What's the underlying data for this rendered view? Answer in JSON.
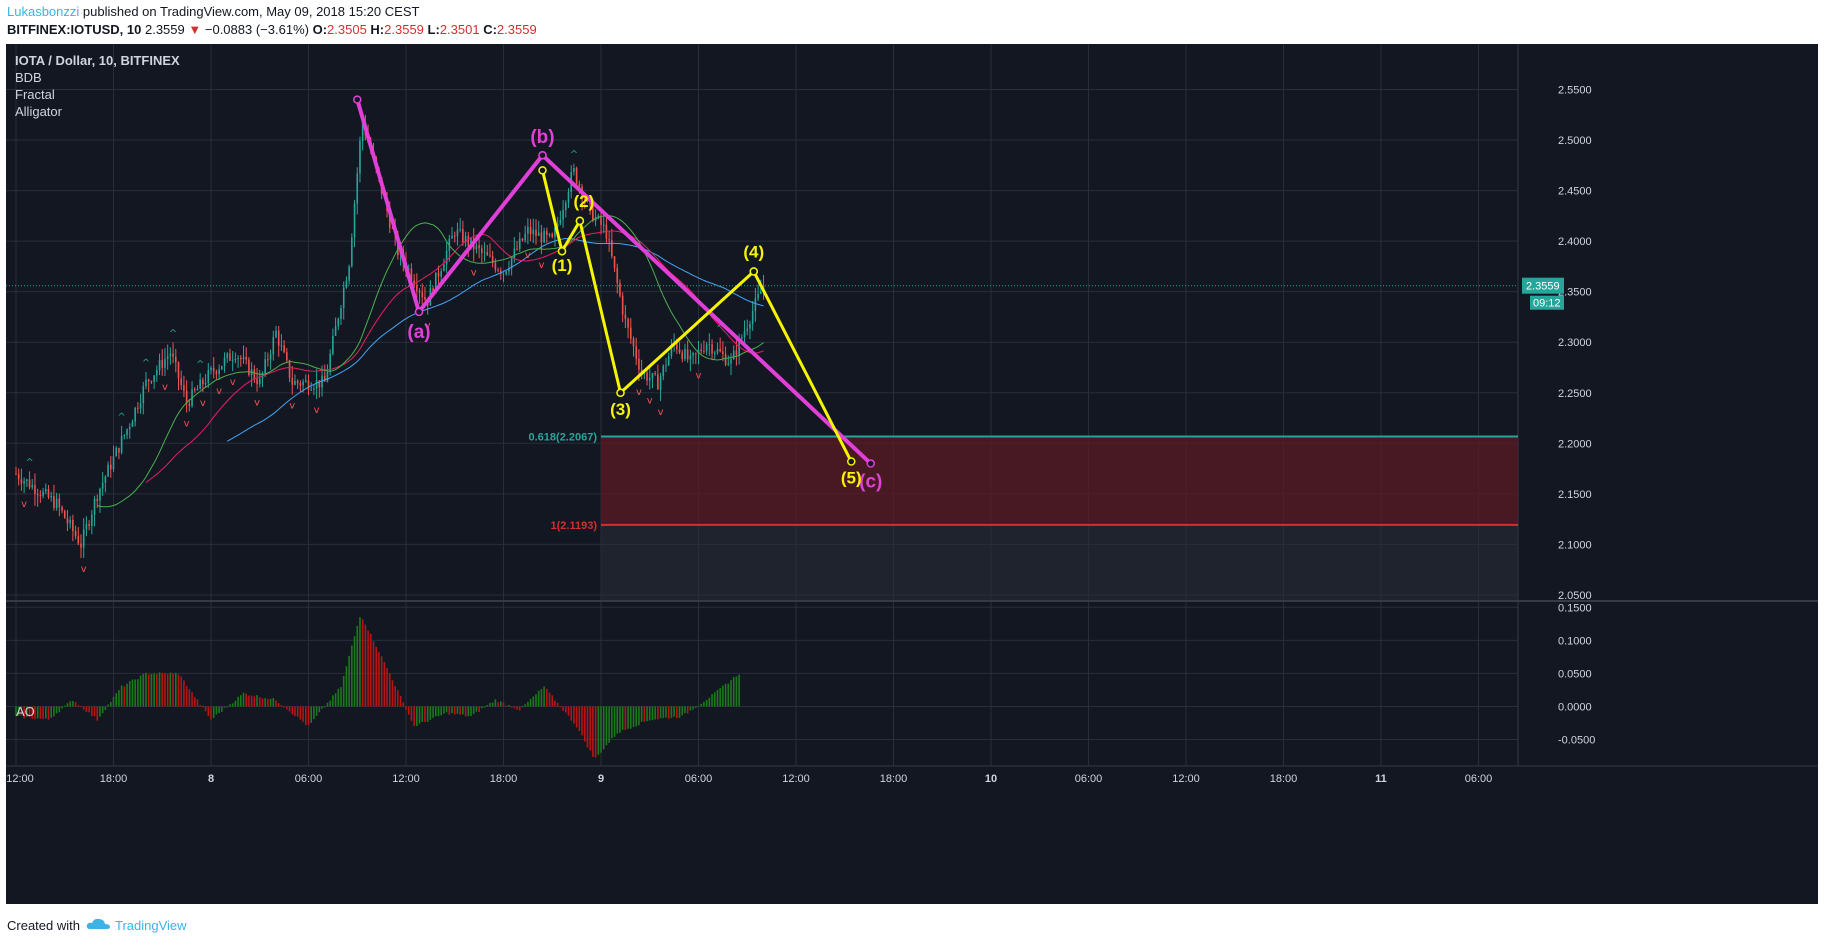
{
  "header": {
    "author": "Lukasbonzzi",
    "published": "published on TradingView.com, May 09, 2018 15:20 CEST",
    "symbol": "BITFINEX:IOTUSD, 10",
    "last": "2.3559",
    "change_arrow": "▼",
    "change": "−0.0883 (−3.61%)",
    "o_label": "O:",
    "o": "2.3505",
    "h_label": "H:",
    "h": "2.3559",
    "l_label": "L:",
    "l": "2.3501",
    "c_label": "C:",
    "c": "2.3559"
  },
  "legend": {
    "title": "IOTA / Dollar, 10, BITFINEX",
    "indicators": [
      "BDB",
      "Fractal",
      "Alligator"
    ],
    "ao_label": "AO"
  },
  "footer": {
    "created_with": "Created with",
    "brand": "TradingView",
    "logo_icon": "tradingview-cloud-icon"
  },
  "colors": {
    "background": "#131722",
    "up_candle": "#26a69a",
    "down_candle": "#ef5350",
    "magenta_wave": "#e040d8",
    "yellow_wave": "#f5f500",
    "fib_618": "#26a69a",
    "fib_1": "#d32f2f",
    "zone": "#5b1a24",
    "price_badge": "#26a69a",
    "ao_up": "#1b7a1b",
    "ao_down": "#b81414"
  },
  "chart_data": [
    {
      "type": "candlestick",
      "title": "IOTA / Dollar, 10, BITFINEX",
      "x_ticks": [
        "12:00",
        "18:00",
        "8",
        "06:00",
        "12:00",
        "18:00",
        "9",
        "06:00",
        "12:00",
        "18:00",
        "10",
        "06:00",
        "12:00",
        "18:00",
        "11",
        "06:00"
      ],
      "y_ticks": [
        "2.5500",
        "2.5000",
        "2.4500",
        "2.4000",
        "2.3500",
        "2.3000",
        "2.2500",
        "2.2000",
        "2.1500",
        "2.1000",
        "2.0500"
      ],
      "ylim": [
        2.045,
        2.595
      ],
      "last_price": "2.3559",
      "countdown": "09:12",
      "price_path": [
        [
          0,
          2.17
        ],
        [
          2.5,
          2.14
        ],
        [
          4,
          2.1
        ],
        [
          5,
          2.15
        ],
        [
          7,
          2.22
        ],
        [
          8,
          2.26
        ],
        [
          9.5,
          2.29
        ],
        [
          10.5,
          2.24
        ],
        [
          12,
          2.27
        ],
        [
          13.5,
          2.29
        ],
        [
          15,
          2.26
        ],
        [
          16,
          2.31
        ],
        [
          17,
          2.26
        ],
        [
          19,
          2.26
        ],
        [
          20.5,
          2.38
        ],
        [
          21.3,
          2.52
        ],
        [
          22.5,
          2.45
        ],
        [
          23.5,
          2.39
        ],
        [
          25.3,
          2.34
        ],
        [
          27,
          2.41
        ],
        [
          28.5,
          2.39
        ],
        [
          30,
          2.37
        ],
        [
          31.5,
          2.41
        ],
        [
          33,
          2.4
        ],
        [
          34.3,
          2.47
        ],
        [
          35.3,
          2.43
        ],
        [
          36.3,
          2.41
        ],
        [
          37.5,
          2.32
        ],
        [
          38.5,
          2.27
        ],
        [
          39.5,
          2.26
        ],
        [
          40.5,
          2.3
        ],
        [
          41.5,
          2.28
        ],
        [
          42.5,
          2.3
        ],
        [
          44,
          2.28
        ],
        [
          45.3,
          2.33
        ],
        [
          46,
          2.356
        ]
      ],
      "waves": [
        {
          "name": "(a)",
          "points": [
            [
              21.0,
              2.54
            ],
            [
              24.8,
              2.33
            ]
          ]
        },
        {
          "name": "(b)",
          "points": [
            [
              24.8,
              2.33
            ],
            [
              32.4,
              2.485
            ]
          ]
        },
        {
          "name": "(c)",
          "points": [
            [
              32.4,
              2.485
            ],
            [
              52.6,
              2.18
            ]
          ]
        },
        {
          "name": "(1)",
          "points": [
            [
              32.4,
              2.47
            ],
            [
              33.6,
              2.39
            ]
          ]
        },
        {
          "name": "(2)",
          "points": [
            [
              33.6,
              2.39
            ],
            [
              34.7,
              2.42
            ]
          ]
        },
        {
          "name": "(3)",
          "points": [
            [
              34.7,
              2.42
            ],
            [
              37.2,
              2.25
            ]
          ]
        },
        {
          "name": "(4)",
          "points": [
            [
              37.2,
              2.25
            ],
            [
              45.4,
              2.37
            ]
          ]
        },
        {
          "name": "(5)",
          "points": [
            [
              45.4,
              2.37
            ],
            [
              51.4,
              2.182
            ]
          ]
        }
      ],
      "wave_labels": [
        {
          "text": "(a)",
          "x": 24.8,
          "y": 2.33,
          "color": "magenta"
        },
        {
          "text": "(b)",
          "x": 32.4,
          "y": 2.485,
          "color": "magenta"
        },
        {
          "text": "(c)",
          "x": 52.6,
          "y": 2.18,
          "color": "magenta"
        },
        {
          "text": "(1)",
          "x": 33.6,
          "y": 2.39,
          "color": "yellow"
        },
        {
          "text": "(2)",
          "x": 34.7,
          "y": 2.42,
          "color": "yellow"
        },
        {
          "text": "(3)",
          "x": 37.2,
          "y": 2.25,
          "color": "yellow"
        },
        {
          "text": "(4)",
          "x": 45.4,
          "y": 2.37,
          "color": "yellow"
        },
        {
          "text": "(5)",
          "x": 51.4,
          "y": 2.182,
          "color": "yellow"
        }
      ],
      "fib_levels": [
        {
          "label": "0.618(2.2067)",
          "value": 2.2067,
          "color": "#26a69a"
        },
        {
          "label": "1(2.1193)",
          "value": 2.1193,
          "color": "#d32f2f"
        }
      ],
      "fib_start_x": 36.0
    },
    {
      "type": "bar",
      "title": "AO",
      "y_ticks": [
        "0.1500",
        "0.1000",
        "0.0500",
        "0.0000",
        "-0.0500"
      ],
      "ylim": [
        -0.09,
        0.155
      ],
      "ao_path": [
        [
          0,
          -0.015
        ],
        [
          2,
          -0.02
        ],
        [
          3.5,
          0.01
        ],
        [
          5,
          -0.02
        ],
        [
          6.5,
          0.03
        ],
        [
          8,
          0.05
        ],
        [
          10,
          0.05
        ],
        [
          12,
          -0.02
        ],
        [
          14,
          0.02
        ],
        [
          16,
          0.01
        ],
        [
          18,
          -0.03
        ],
        [
          20,
          0.03
        ],
        [
          21.2,
          0.14
        ],
        [
          23,
          0.05
        ],
        [
          24.5,
          -0.03
        ],
        [
          26.5,
          -0.01
        ],
        [
          28,
          -0.015
        ],
        [
          29.5,
          0.01
        ],
        [
          31,
          -0.005
        ],
        [
          32.5,
          0.03
        ],
        [
          34.5,
          -0.03
        ],
        [
          35.6,
          -0.08
        ],
        [
          37,
          -0.04
        ],
        [
          39,
          -0.02
        ],
        [
          41,
          -0.015
        ],
        [
          43,
          0.02
        ],
        [
          44.5,
          0.05
        ]
      ]
    }
  ]
}
